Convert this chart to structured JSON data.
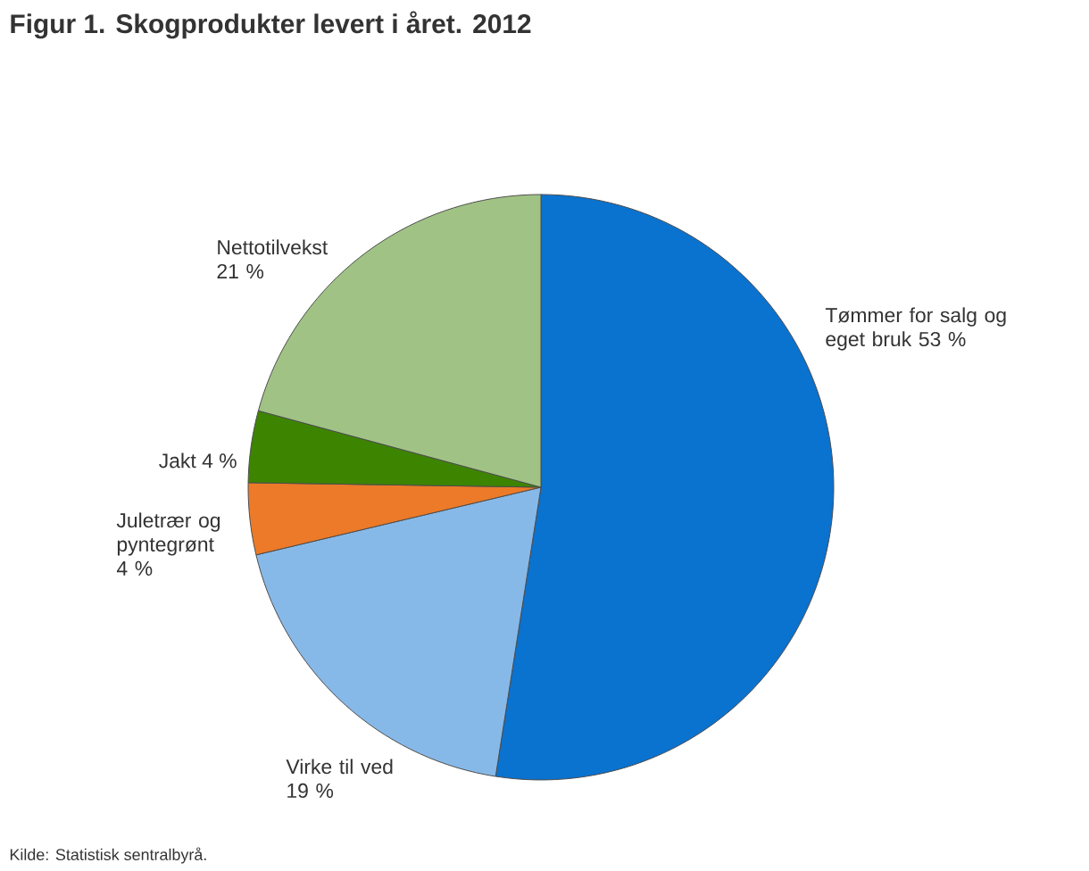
{
  "chart_data": {
    "type": "pie",
    "title": "Figur 1. Skogprodukter levert i året. 2012",
    "categories": [
      "Tømmer for salg og eget bruk",
      "Virke til ved",
      "Juletrær og pyntegrønt",
      "Jakt",
      "Nettotilvekst"
    ],
    "values": [
      53,
      19,
      4,
      4,
      21
    ],
    "value_labels": [
      "53 %",
      "19 %",
      "4 %",
      "4 %",
      "21 %"
    ],
    "colors": [
      "#0a72cf",
      "#87b9e8",
      "#ec7a28",
      "#3d8400",
      "#a0c385"
    ],
    "annotations": [
      "Kilde: Statistisk sentralbyrå."
    ]
  }
}
